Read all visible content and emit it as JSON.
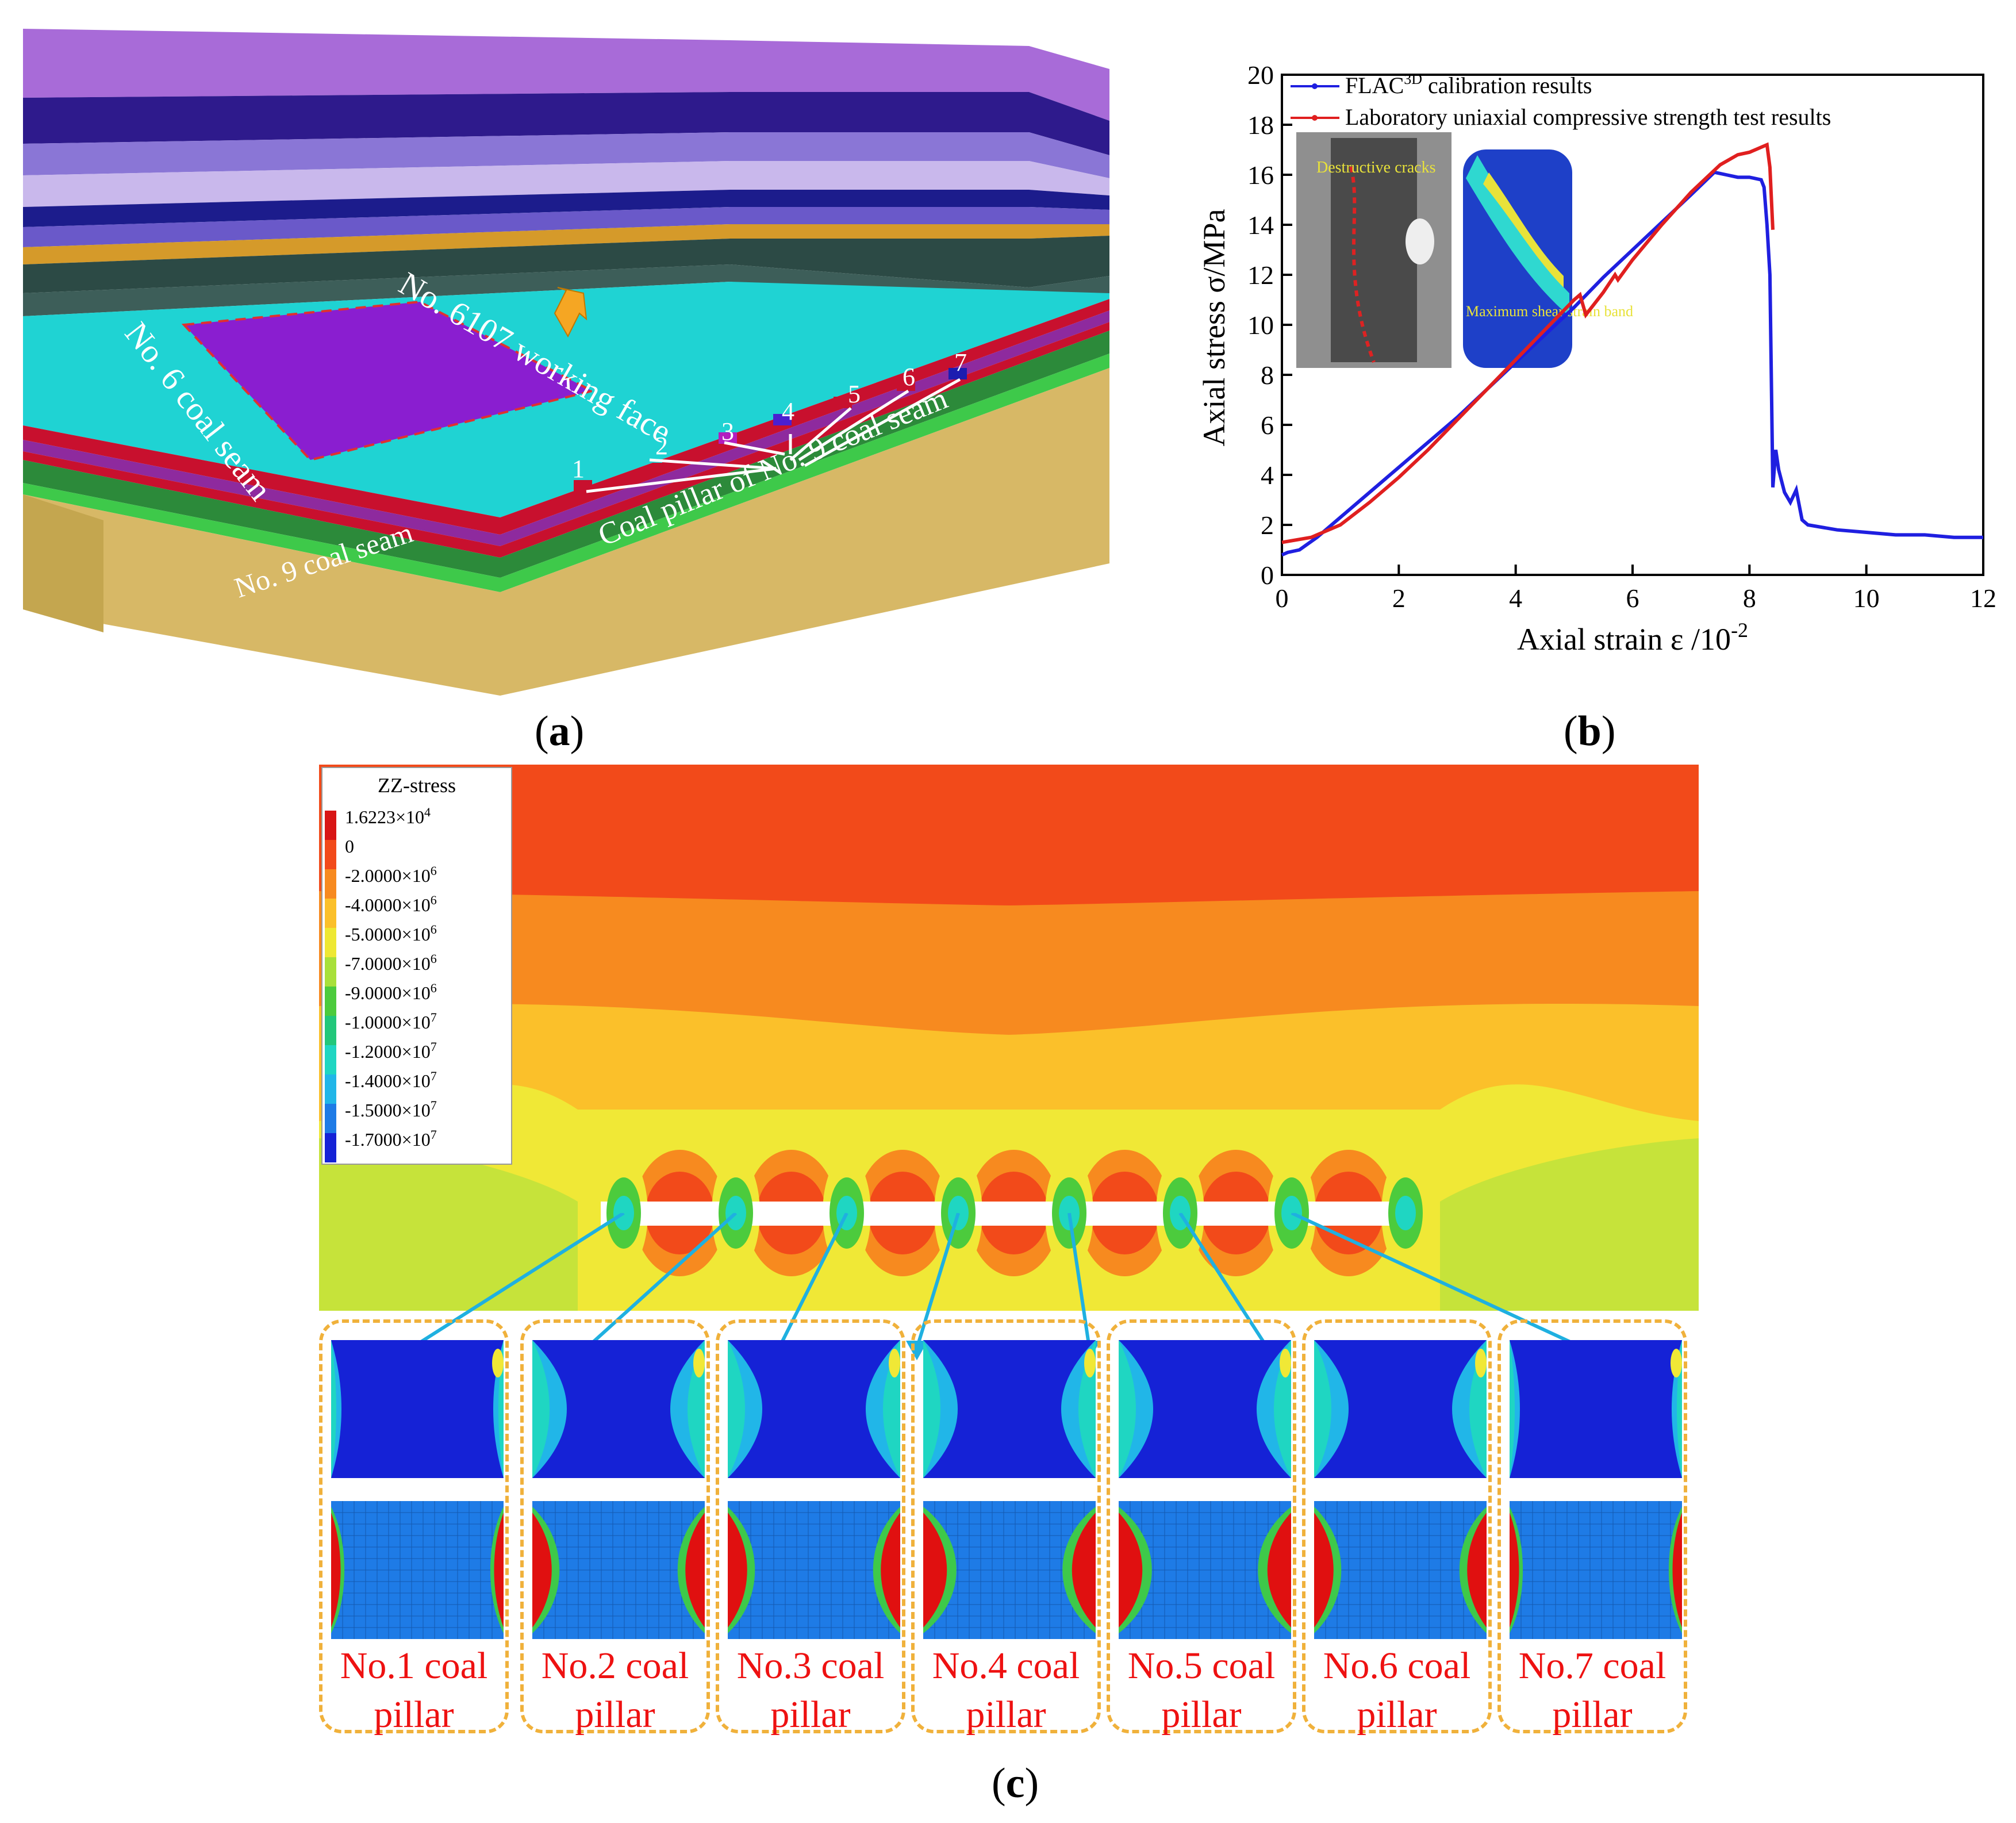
{
  "panel_labels": {
    "a": "a",
    "b": "b",
    "c": "c"
  },
  "panel_a": {
    "working_face": "No. 6107 working face",
    "coal6": "No. 6 coal seam",
    "coal9": "No. 9 coal seam",
    "pillar_caption": "Coal pillar of No. 9 coal seam",
    "pillar_numbers": [
      "1",
      "2",
      "3",
      "4",
      "5",
      "6",
      "7"
    ],
    "colors": {
      "purple": "#A86BD8",
      "teal": "#1ED6D6",
      "red": "#C8102E",
      "green": "#3EC94A",
      "tan": "#D7B866"
    }
  },
  "panel_b": {
    "inset_label_1": "Destructive cracks",
    "inset_label_2": "Maximum shear strain band",
    "chart_data": {
      "type": "line",
      "xlabel": "Axial strain  ε /10",
      "xlabel_exp": "-2",
      "ylabel": "Axial stress σ/MPa",
      "xlim": [
        0,
        12
      ],
      "ylim": [
        0,
        20
      ],
      "xticks": [
        "0",
        "2",
        "4",
        "6",
        "8",
        "10",
        "12"
      ],
      "yticks": [
        "0",
        "2",
        "4",
        "6",
        "8",
        "10",
        "12",
        "14",
        "16",
        "18",
        "20"
      ],
      "legend": [
        {
          "name": "FLAC",
          "sup": "3D",
          "suffix": " calibration results",
          "color": "#1F1FE0"
        },
        {
          "name": "Laboratory uniaxial compressive strength test results",
          "sup": "",
          "suffix": "",
          "color": "#E01F1F"
        }
      ],
      "series": [
        {
          "name": "FLAC3D calibration results",
          "color": "#1F1FE0",
          "x": [
            0,
            0.1,
            0.3,
            0.6,
            1.0,
            1.5,
            2.0,
            2.5,
            3.0,
            3.5,
            4.0,
            4.5,
            5.0,
            5.5,
            6.0,
            6.5,
            7.0,
            7.4,
            7.6,
            7.8,
            8.0,
            8.2,
            8.25,
            8.3,
            8.35,
            8.4,
            8.45,
            8.5,
            8.6,
            8.7,
            8.8,
            8.9,
            9.0,
            9.5,
            10,
            10.5,
            11,
            11.5,
            12
          ],
          "y": [
            0.8,
            0.9,
            1.0,
            1.5,
            2.3,
            3.3,
            4.3,
            5.3,
            6.3,
            7.4,
            8.5,
            9.6,
            10.7,
            11.9,
            13.0,
            14.1,
            15.2,
            16.1,
            16.0,
            15.9,
            15.9,
            15.8,
            15.5,
            14.0,
            12.0,
            3.5,
            5.0,
            4.2,
            3.3,
            2.9,
            3.4,
            2.2,
            2.0,
            1.8,
            1.7,
            1.6,
            1.6,
            1.5,
            1.5
          ]
        },
        {
          "name": "Laboratory uniaxial compressive strength test results",
          "color": "#E01F1F",
          "x": [
            0,
            0.5,
            1.0,
            1.5,
            2.0,
            2.5,
            3.0,
            3.5,
            4.0,
            4.5,
            5.0,
            5.1,
            5.2,
            5.5,
            5.7,
            5.75,
            6.0,
            6.5,
            7.0,
            7.5,
            7.8,
            8.0,
            8.2,
            8.3,
            8.35,
            8.4
          ],
          "y": [
            1.3,
            1.5,
            2.0,
            2.9,
            3.9,
            5.0,
            6.2,
            7.4,
            8.6,
            9.8,
            11.0,
            11.2,
            10.4,
            11.3,
            12.0,
            11.8,
            12.6,
            14.0,
            15.3,
            16.4,
            16.8,
            16.9,
            17.1,
            17.2,
            16.3,
            13.8
          ]
        }
      ]
    }
  },
  "panel_c": {
    "legend_title": "ZZ-stress",
    "legend_entries": [
      {
        "label": "1.6223×10",
        "exp": "4",
        "color": "#D81515"
      },
      {
        "label": "0",
        "exp": "",
        "color": "#F24A1A"
      },
      {
        "label": "-2.0000×10",
        "exp": "6",
        "color": "#F78A1F"
      },
      {
        "label": "-4.0000×10",
        "exp": "6",
        "color": "#FBC02A"
      },
      {
        "label": "-5.0000×10",
        "exp": "6",
        "color": "#EEE833"
      },
      {
        "label": "-7.0000×10",
        "exp": "6",
        "color": "#A8E03A"
      },
      {
        "label": "-9.0000×10",
        "exp": "6",
        "color": "#4CCB3D"
      },
      {
        "label": "-1.0000×10",
        "exp": "7",
        "color": "#22C77A"
      },
      {
        "label": "-1.2000×10",
        "exp": "7",
        "color": "#1FD6C2"
      },
      {
        "label": "-1.4000×10",
        "exp": "7",
        "color": "#21B6E8"
      },
      {
        "label": "-1.5000×10",
        "exp": "7",
        "color": "#1E7BE6"
      },
      {
        "label": "-1.7000×10",
        "exp": "7",
        "color": "#1522D6"
      }
    ],
    "pillars": [
      {
        "line1": "No.1 coal",
        "line2": "pillar"
      },
      {
        "line1": "No.2 coal",
        "line2": "pillar"
      },
      {
        "line1": "No.3 coal",
        "line2": "pillar"
      },
      {
        "line1": "No.4 coal",
        "line2": "pillar"
      },
      {
        "line1": "No.5 coal",
        "line2": "pillar"
      },
      {
        "line1": "No.6 coal",
        "line2": "pillar"
      },
      {
        "line1": "No.7 coal",
        "line2": "pillar"
      }
    ]
  }
}
